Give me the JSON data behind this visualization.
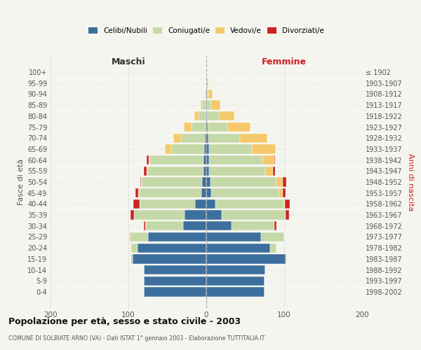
{
  "age_groups": [
    "0-4",
    "5-9",
    "10-14",
    "15-19",
    "20-24",
    "25-29",
    "30-34",
    "35-39",
    "40-44",
    "45-49",
    "50-54",
    "55-59",
    "60-64",
    "65-69",
    "70-74",
    "75-79",
    "80-84",
    "85-89",
    "90-94",
    "95-99",
    "100+"
  ],
  "birth_years": [
    "1998-2002",
    "1993-1997",
    "1988-1992",
    "1983-1987",
    "1978-1982",
    "1973-1977",
    "1968-1972",
    "1963-1967",
    "1958-1962",
    "1953-1957",
    "1948-1952",
    "1943-1947",
    "1938-1942",
    "1933-1937",
    "1928-1932",
    "1923-1927",
    "1918-1922",
    "1913-1917",
    "1908-1912",
    "1903-1907",
    "≤ 1902"
  ],
  "male_celibe": [
    80,
    80,
    80,
    95,
    88,
    75,
    30,
    28,
    14,
    6,
    5,
    4,
    4,
    3,
    2,
    1,
    0,
    0,
    0,
    0,
    0
  ],
  "male_coniugato": [
    0,
    0,
    0,
    2,
    8,
    22,
    48,
    65,
    72,
    80,
    78,
    72,
    68,
    42,
    30,
    18,
    10,
    5,
    2,
    1,
    0
  ],
  "male_vedovo": [
    0,
    0,
    0,
    0,
    1,
    2,
    0,
    0,
    0,
    1,
    1,
    1,
    2,
    8,
    10,
    10,
    5,
    2,
    0,
    0,
    0
  ],
  "male_divorziato": [
    0,
    0,
    0,
    0,
    0,
    0,
    2,
    4,
    8,
    4,
    1,
    3,
    3,
    0,
    0,
    0,
    0,
    0,
    0,
    0,
    0
  ],
  "female_celibe": [
    75,
    75,
    76,
    102,
    82,
    70,
    32,
    20,
    12,
    6,
    5,
    4,
    4,
    4,
    3,
    2,
    1,
    1,
    1,
    0,
    0
  ],
  "female_coniugata": [
    0,
    0,
    0,
    2,
    8,
    30,
    55,
    82,
    88,
    88,
    85,
    72,
    68,
    55,
    40,
    25,
    15,
    5,
    2,
    1,
    0
  ],
  "female_vedova": [
    0,
    0,
    0,
    0,
    0,
    0,
    0,
    0,
    1,
    4,
    8,
    10,
    15,
    30,
    35,
    30,
    20,
    12,
    5,
    2,
    0
  ],
  "female_divorziata": [
    0,
    0,
    0,
    0,
    0,
    0,
    3,
    4,
    6,
    4,
    5,
    2,
    1,
    0,
    0,
    0,
    0,
    0,
    0,
    0,
    0
  ],
  "color_celibe": "#3d6f9e",
  "color_coniugato": "#c5d9a8",
  "color_vedovo": "#f5c96b",
  "color_divorziato": "#cc2222",
  "title": "Popolazione per età, sesso e stato civile - 2003",
  "subtitle": "COMUNE DI SOLBIATE ARNO (VA) - Dati ISTAT 1° gennaio 2003 - Elaborazione TUTTITALIA.IT",
  "xlabel_left": "Maschi",
  "xlabel_right": "Femmine",
  "ylabel_left": "Fasce di età",
  "ylabel_right": "Anni di nascita",
  "xlim": 200,
  "background_color": "#f5f5f0",
  "grid_color": "#cccccc"
}
